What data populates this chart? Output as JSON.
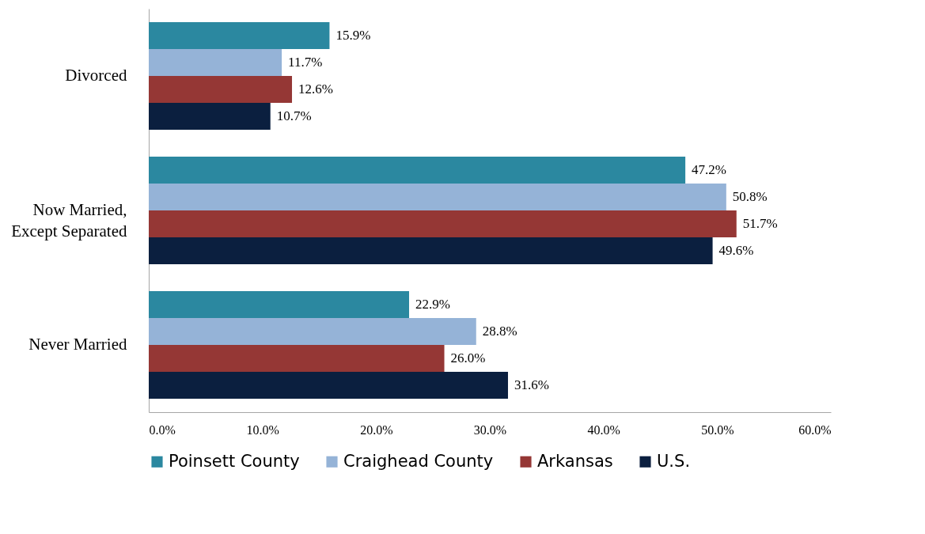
{
  "chart_data": {
    "type": "bar",
    "orientation": "horizontal",
    "categories": [
      "Divorced",
      "Now Married, Except Separated",
      "Never Married"
    ],
    "series": [
      {
        "name": "Poinsett County",
        "color": "#2b88a0",
        "values": [
          15.9,
          47.2,
          22.9
        ],
        "value_labels": [
          "15.9%",
          "47.2%",
          "22.9%"
        ]
      },
      {
        "name": "Craighead County",
        "color": "#95b3d7",
        "values": [
          11.7,
          50.8,
          28.8
        ],
        "value_labels": [
          "11.7%",
          "50.8%",
          "28.8%"
        ]
      },
      {
        "name": "Arkansas",
        "color": "#953735",
        "values": [
          12.6,
          51.7,
          26.0
        ],
        "value_labels": [
          "12.6%",
          "51.7%",
          "26.0%"
        ]
      },
      {
        "name": "U.S.",
        "color": "#0b1f3f",
        "values": [
          10.7,
          49.6,
          31.6
        ],
        "value_labels": [
          "10.7%",
          "49.6%",
          "31.6%"
        ]
      }
    ],
    "xlim": [
      0,
      60
    ],
    "xticks": [
      {
        "value": 0,
        "label": "0.0%"
      },
      {
        "value": 10,
        "label": "10.0%"
      },
      {
        "value": 20,
        "label": "20.0%"
      },
      {
        "value": 30,
        "label": "30.0%"
      },
      {
        "value": 40,
        "label": "40.0%"
      },
      {
        "value": 50,
        "label": "50.0%"
      },
      {
        "value": 60,
        "label": "60.0%"
      }
    ],
    "grid": false,
    "legend": "bottom"
  }
}
